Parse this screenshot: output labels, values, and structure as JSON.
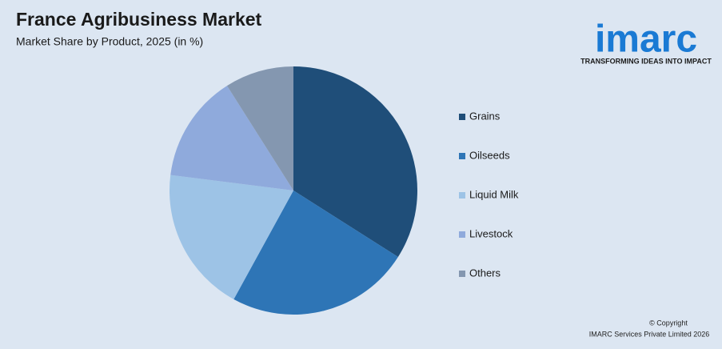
{
  "chart_data": {
    "type": "pie",
    "title": "France Agribusiness Market",
    "subtitle": "Market Share by Product, 2025 (in %)",
    "categories": [
      "Grains",
      "Oilseeds",
      "Liquid Milk",
      "Livestock",
      "Others"
    ],
    "values": [
      34,
      24,
      19,
      14,
      9
    ],
    "colors": [
      "#1f4e79",
      "#2e75b6",
      "#9dc3e6",
      "#8faadc",
      "#8497b0"
    ],
    "legend": "right"
  },
  "logo": {
    "name": "imarc",
    "tagline": "TRANSFORMING IDEAS INTO IMPACT"
  },
  "footer": [
    "© Copyright",
    "IMARC Services Private Limited 2026"
  ]
}
